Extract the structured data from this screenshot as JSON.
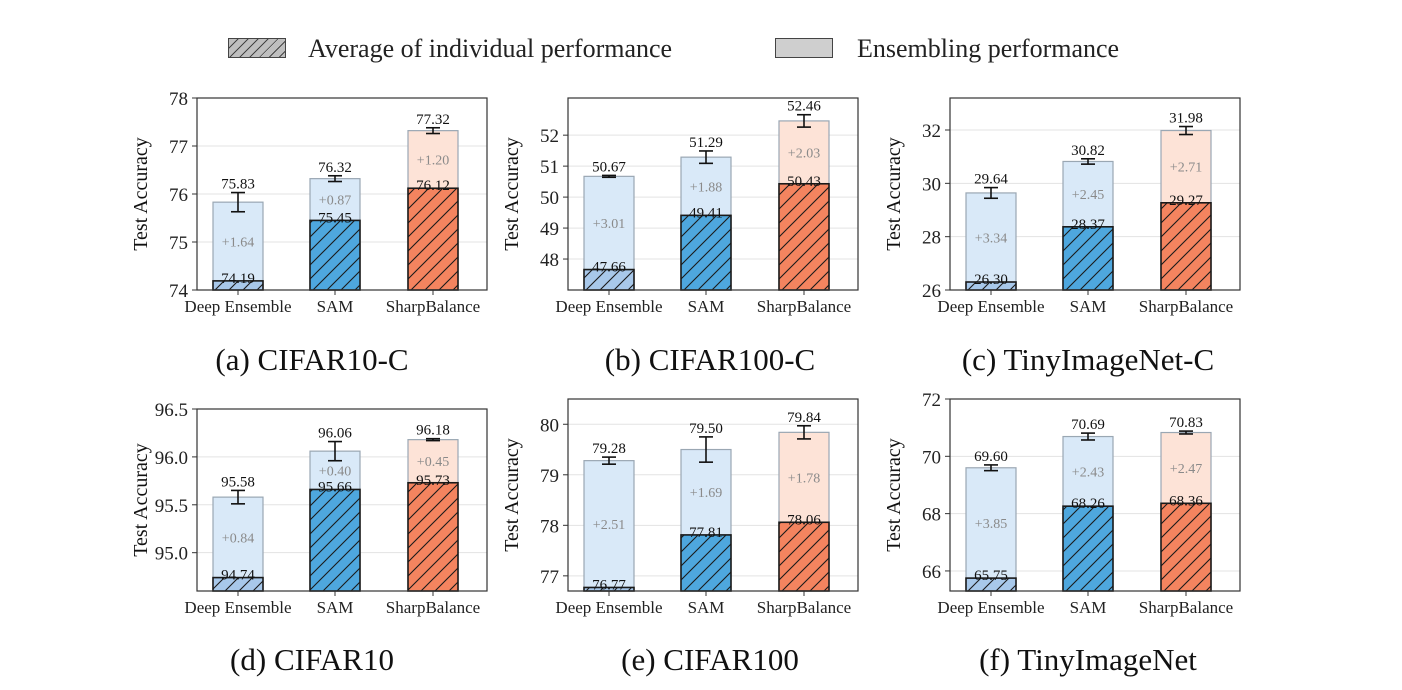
{
  "legend": {
    "individual_label": "Average of individual performance",
    "ensemble_label": "Ensembling performance"
  },
  "colors": {
    "deep_ensemble_solid": "#a8c8ea",
    "sam_solid": "#4ea7de",
    "sharp_solid": "#f4845f",
    "blue_light": "#d9e9f8",
    "orange_light": "#fde3d7",
    "gain_text": "#8a8a8a",
    "frame": "#333333",
    "grid": "#e3e3e3"
  },
  "chart_data": [
    {
      "id": "a",
      "type": "bar",
      "caption": "(a) CIFAR10-C",
      "ylabel": "Test Accuracy",
      "categories": [
        "Deep Ensemble",
        "SAM",
        "SharpBalance"
      ],
      "individual": [
        74.19,
        75.45,
        76.12
      ],
      "ensemble": [
        75.83,
        76.32,
        77.32
      ],
      "individual_labels": [
        "74.19",
        "75.45",
        "76.12"
      ],
      "ensemble_labels": [
        "75.83",
        "76.32",
        "77.32"
      ],
      "gain_labels": [
        "+1.64",
        "+0.87",
        "+1.20"
      ],
      "error": [
        0.2,
        0.06,
        0.06
      ],
      "ylim": [
        74,
        78
      ],
      "yticks": [
        74,
        75,
        76,
        77,
        78
      ],
      "ytick_labels": [
        "74",
        "75",
        "76",
        "77",
        "78"
      ]
    },
    {
      "id": "b",
      "type": "bar",
      "caption": "(b) CIFAR100-C",
      "ylabel": "Test Accuracy",
      "categories": [
        "Deep Ensemble",
        "SAM",
        "SharpBalance"
      ],
      "individual": [
        47.66,
        49.41,
        50.43
      ],
      "ensemble": [
        50.67,
        51.29,
        52.46
      ],
      "individual_labels": [
        "47.66",
        "49.41",
        "50.43"
      ],
      "ensemble_labels": [
        "50.67",
        "51.29",
        "52.46"
      ],
      "gain_labels": [
        "+3.01",
        "+1.88",
        "+2.03"
      ],
      "error": [
        0.03,
        0.2,
        0.2
      ],
      "ylim": [
        47,
        53.2
      ],
      "yticks": [
        48,
        49,
        50,
        51,
        52
      ],
      "ytick_labels": [
        "48",
        "49",
        "50",
        "51",
        "52"
      ]
    },
    {
      "id": "c",
      "type": "bar",
      "caption": "(c) TinyImageNet-C",
      "ylabel": "Test Accuracy",
      "categories": [
        "Deep Ensemble",
        "SAM",
        "SharpBalance"
      ],
      "individual": [
        26.3,
        28.37,
        29.27
      ],
      "ensemble": [
        29.64,
        30.82,
        31.98
      ],
      "individual_labels": [
        "26.30",
        "28.37",
        "29.27"
      ],
      "ensemble_labels": [
        "29.64",
        "30.82",
        "31.98"
      ],
      "gain_labels": [
        "+3.34",
        "+2.45",
        "+2.71"
      ],
      "error": [
        0.2,
        0.1,
        0.15
      ],
      "ylim": [
        26,
        33.2
      ],
      "yticks": [
        26,
        28,
        30,
        32
      ],
      "ytick_labels": [
        "26",
        "28",
        "30",
        "32"
      ]
    },
    {
      "id": "d",
      "type": "bar",
      "caption": "(d) CIFAR10",
      "ylabel": "Test Accuracy",
      "categories": [
        "Deep Ensemble",
        "SAM",
        "SharpBalance"
      ],
      "individual": [
        94.74,
        95.66,
        95.73
      ],
      "ensemble": [
        95.58,
        96.06,
        96.18
      ],
      "individual_labels": [
        "94.74",
        "95.66",
        "95.73"
      ],
      "ensemble_labels": [
        "95.58",
        "96.06",
        "96.18"
      ],
      "gain_labels": [
        "+0.84",
        "+0.40",
        "+0.45"
      ],
      "error": [
        0.07,
        0.1,
        0.01
      ],
      "ylim": [
        94.6,
        96.5
      ],
      "yticks": [
        95.0,
        95.5,
        96.0,
        96.5
      ],
      "ytick_labels": [
        "95.0",
        "95.5",
        "96.0",
        "96.5"
      ]
    },
    {
      "id": "e",
      "type": "bar",
      "caption": "(e) CIFAR100",
      "ylabel": "Test Accuracy",
      "categories": [
        "Deep Ensemble",
        "SAM",
        "SharpBalance"
      ],
      "individual": [
        76.77,
        77.81,
        78.06
      ],
      "ensemble": [
        79.28,
        79.5,
        79.84
      ],
      "individual_labels": [
        "76.77",
        "77.81",
        "78.06"
      ],
      "ensemble_labels": [
        "79.28",
        "79.50",
        "79.84"
      ],
      "gain_labels": [
        "+2.51",
        "+1.69",
        "+1.78"
      ],
      "error": [
        0.07,
        0.25,
        0.13
      ],
      "ylim": [
        76.7,
        80.5
      ],
      "yticks": [
        77,
        78,
        79,
        80
      ],
      "ytick_labels": [
        "77",
        "78",
        "79",
        "80"
      ]
    },
    {
      "id": "f",
      "type": "bar",
      "caption": "(f) TinyImageNet",
      "ylabel": "Test Accuracy",
      "categories": [
        "Deep Ensemble",
        "SAM",
        "SharpBalance"
      ],
      "individual": [
        65.75,
        68.26,
        68.36
      ],
      "ensemble": [
        69.6,
        70.69,
        70.83
      ],
      "individual_labels": [
        "65.75",
        "68.26",
        "68.36"
      ],
      "ensemble_labels": [
        "69.60",
        "70.69",
        "70.83"
      ],
      "gain_labels": [
        "+3.85",
        "+2.43",
        "+2.47"
      ],
      "error": [
        0.1,
        0.12,
        0.05
      ],
      "ylim": [
        65.3,
        72
      ],
      "yticks": [
        66,
        68,
        70,
        72
      ],
      "ytick_labels": [
        "66",
        "68",
        "70",
        "72"
      ]
    }
  ]
}
